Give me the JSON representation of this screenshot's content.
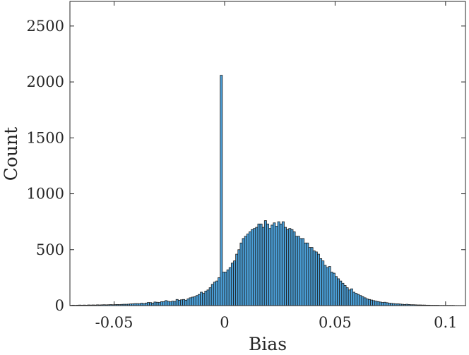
{
  "chart_data": {
    "type": "bar",
    "subtype": "histogram",
    "title": "",
    "xlabel": "Bias",
    "ylabel": "Count",
    "xlim": [
      -0.07,
      0.109
    ],
    "ylim": [
      0,
      2720
    ],
    "xticks": [
      -0.05,
      0,
      0.05,
      0.1
    ],
    "xtick_labels": [
      "-0.05",
      "0",
      "0.05",
      "0.1"
    ],
    "yticks": [
      0,
      500,
      1000,
      1500,
      2000,
      2500
    ],
    "ytick_labels": [
      "0",
      "500",
      "1000",
      "1500",
      "2000",
      "2500"
    ],
    "grid": false,
    "legend": "none",
    "bar_color": "#4a9fd8",
    "edge_color": "#1c1c1c",
    "bin_start": -0.07,
    "bin_width": 0.001,
    "counts": [
      3,
      4,
      3,
      4,
      5,
      4,
      5,
      4,
      6,
      5,
      6,
      5,
      7,
      6,
      7,
      8,
      7,
      8,
      9,
      8,
      9,
      10,
      9,
      11,
      12,
      12,
      13,
      15,
      16,
      18,
      18,
      17,
      22,
      18,
      23,
      28,
      27,
      22,
      32,
      30,
      28,
      35,
      35,
      45,
      38,
      34,
      40,
      38,
      55,
      48,
      52,
      55,
      48,
      60,
      70,
      76,
      80,
      90,
      100,
      120,
      110,
      130,
      140,
      160,
      190,
      210,
      220,
      250,
      2060,
      300,
      300,
      320,
      340,
      380,
      400,
      460,
      500,
      560,
      600,
      620,
      640,
      660,
      680,
      690,
      700,
      730,
      730,
      700,
      760,
      730,
      690,
      720,
      740,
      710,
      750,
      730,
      750,
      700,
      680,
      690,
      680,
      660,
      620,
      620,
      600,
      600,
      560,
      560,
      520,
      520,
      490,
      480,
      460,
      420,
      400,
      360,
      340,
      350,
      300,
      290,
      260,
      240,
      220,
      200,
      180,
      160,
      140,
      150,
      120,
      110,
      100,
      90,
      80,
      70,
      60,
      55,
      50,
      45,
      40,
      36,
      32,
      28,
      30,
      26,
      22,
      20,
      18,
      16,
      16,
      14,
      12,
      10,
      12,
      10,
      8,
      8,
      7,
      6,
      6,
      5,
      5,
      4,
      4,
      3,
      3,
      3,
      3,
      2,
      2,
      2,
      2,
      2,
      2,
      2,
      1,
      1,
      1,
      1,
      1,
      1
    ]
  }
}
